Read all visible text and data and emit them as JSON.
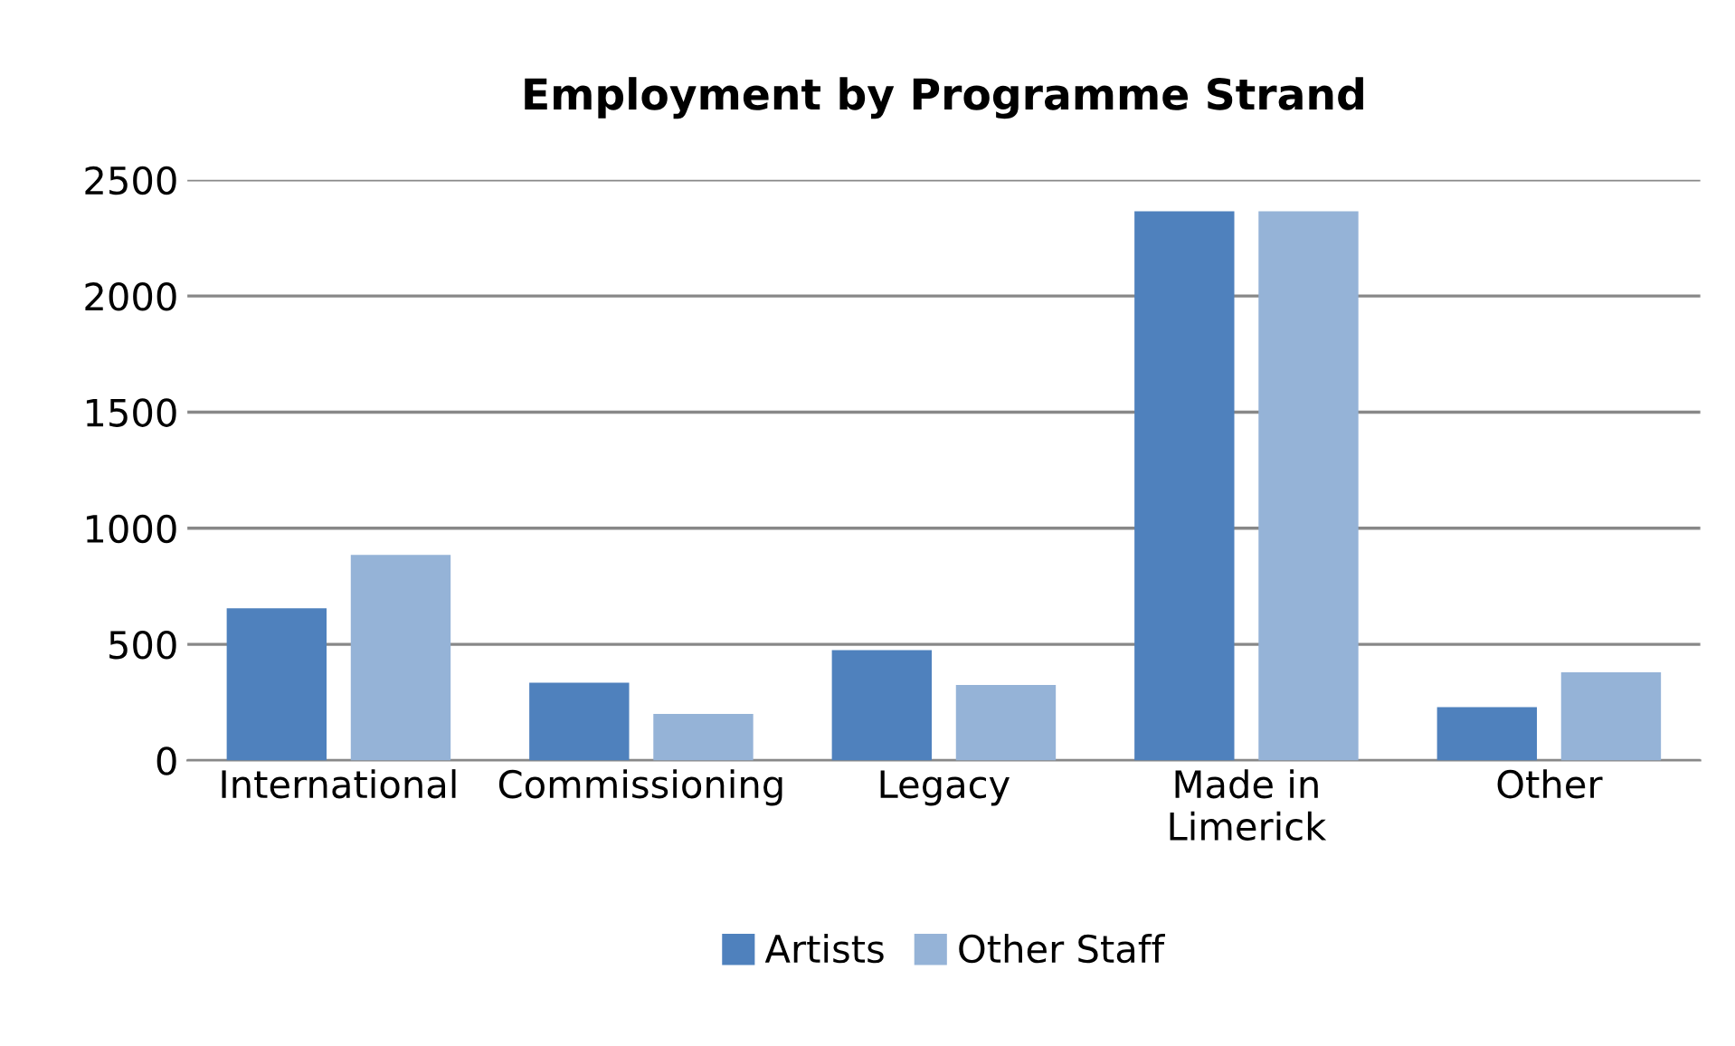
{
  "chart_data": {
    "type": "bar",
    "title": "Employment by Programme Strand",
    "categories": [
      "International",
      "Commissioning",
      "Legacy",
      "Made in\nLimerick",
      "Other"
    ],
    "series": [
      {
        "name": "Artists",
        "color": "#4f81bd",
        "values": [
          655,
          335,
          475,
          2365,
          230
        ]
      },
      {
        "name": "Other Staff",
        "color": "#95b3d7",
        "values": [
          885,
          200,
          325,
          2365,
          380
        ]
      }
    ],
    "ylim": [
      0,
      2500
    ],
    "yticks": [
      0,
      500,
      1000,
      1500,
      2000,
      2500
    ],
    "grid": "y",
    "legend": "bottom"
  }
}
